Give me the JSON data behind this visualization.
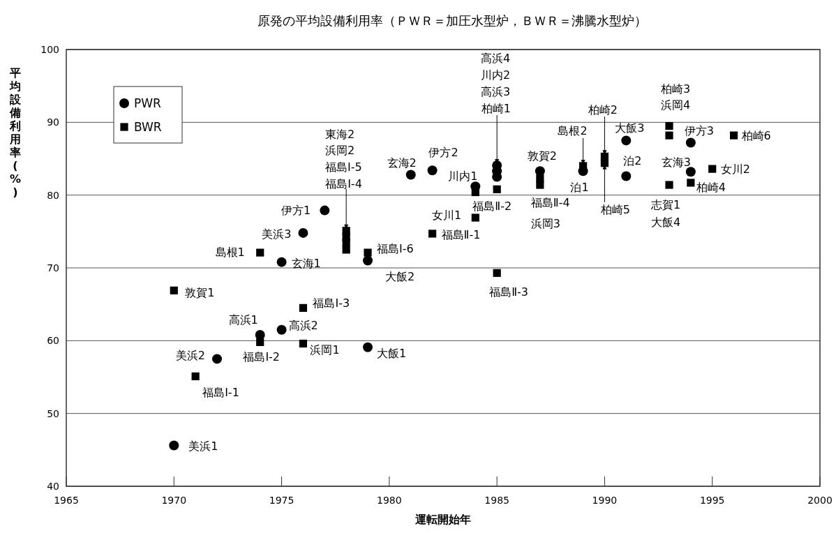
{
  "chart_data": {
    "type": "scatter",
    "title": "原発の平均設備利用率（ＰＷＲ＝加圧水型炉，ＢＷＲ＝沸騰水型炉）",
    "xlabel": "運転開始年",
    "ylabel": "平均設備利用率(%)",
    "xlim": [
      1965,
      2000
    ],
    "xticks": [
      1965,
      1970,
      1975,
      1980,
      1985,
      1990,
      1995,
      2000
    ],
    "ylim": [
      40,
      100
    ],
    "yticks": [
      40,
      50,
      60,
      70,
      80,
      90,
      100
    ],
    "grid": "y",
    "legend": "top left",
    "series": [
      {
        "name": "PWR",
        "color": "#000000",
        "marker": "circle",
        "x": [
          1970,
          1972,
          1974,
          1975,
          1975,
          1976,
          1977,
          1979,
          1979,
          1981,
          1982,
          1984,
          1985,
          1985,
          1985,
          1987,
          1989,
          1991,
          1991,
          1994,
          1994
        ],
        "values": [
          45.6,
          57.5,
          60.8,
          61.5,
          70.8,
          74.8,
          77.9,
          59.1,
          71.0,
          82.8,
          83.4,
          81.2,
          84.1,
          83.3,
          82.5,
          83.3,
          83.3,
          87.5,
          82.6,
          87.2,
          83.2
        ]
      },
      {
        "name": "BWR",
        "color": "#000000",
        "marker": "square",
        "x": [
          1970,
          1971,
          1974,
          1974,
          1976,
          1976,
          1978,
          1978,
          1978,
          1978,
          1979,
          1982,
          1984,
          1984,
          1985,
          1985,
          1987,
          1987,
          1989,
          1990,
          1990,
          1993,
          1993,
          1993,
          1994,
          1995,
          1996
        ],
        "values": [
          66.9,
          55.1,
          72.1,
          59.8,
          64.5,
          59.6,
          75.1,
          74.2,
          73.5,
          72.5,
          72.1,
          74.7,
          76.9,
          80.4,
          80.8,
          69.3,
          82.3,
          81.4,
          84.0,
          85.3,
          84.4,
          89.5,
          88.2,
          81.4,
          81.7,
          83.6,
          88.2
        ]
      }
    ],
    "annotations": [
      {
        "text": "美浜1",
        "x": 1970,
        "y": 45.6
      },
      {
        "text": "美浜2",
        "x": 1972,
        "y": 57.5
      },
      {
        "text": "福島I-1",
        "x": 1971,
        "y": 55.1
      },
      {
        "text": "敦賀1",
        "x": 1970,
        "y": 66.9
      },
      {
        "text": "高浜1",
        "x": 1974,
        "y": 60.8
      },
      {
        "text": "福島I-2",
        "x": 1974,
        "y": 59.8
      },
      {
        "text": "高浜2",
        "x": 1975,
        "y": 61.5
      },
      {
        "text": "浜岡1",
        "x": 1976,
        "y": 59.6
      },
      {
        "text": "福島I-3",
        "x": 1976,
        "y": 64.5
      },
      {
        "text": "島根1",
        "x": 1974,
        "y": 72.1
      },
      {
        "text": "玄海1",
        "x": 1975,
        "y": 70.8
      },
      {
        "text": "美浜3",
        "x": 1976,
        "y": 74.8
      },
      {
        "text": "伊方1",
        "x": 1977,
        "y": 77.9
      },
      "東海2",
      "浜岡2",
      "福島I-5",
      {
        "text": "福島I-4",
        "x": 1978,
        "y": 75.1
      },
      {
        "text": "福島I-6",
        "x": 1979,
        "y": 72.1
      },
      {
        "text": "大飯2",
        "x": 1979,
        "y": 71.0
      },
      {
        "text": "大飯1",
        "x": 1979,
        "y": 59.1
      },
      {
        "text": "玄海2",
        "x": 1981,
        "y": 82.8
      },
      {
        "text": "伊方2",
        "x": 1982,
        "y": 83.4
      },
      {
        "text": "福島Ⅱ-1",
        "x": 1982,
        "y": 74.7
      },
      {
        "text": "川内1",
        "x": 1984,
        "y": 81.2
      },
      {
        "text": "福島Ⅱ-2",
        "x": 1984,
        "y": 80.4
      },
      {
        "text": "女川1",
        "x": 1984,
        "y": 76.9
      },
      "高浜4",
      "川内2",
      "高浜3",
      {
        "text": "柏崎1",
        "x": 1985,
        "y": 84.1
      },
      {
        "text": "福島Ⅱ-3",
        "x": 1985,
        "y": 69.3
      },
      {
        "text": "敦賀2",
        "x": 1987,
        "y": 83.3
      },
      {
        "text": "福島Ⅱ-4",
        "x": 1987,
        "y": 82.3
      },
      {
        "text": "浜岡3",
        "x": 1987,
        "y": 81.4
      },
      {
        "text": "島根2",
        "x": 1989,
        "y": 84.0
      },
      {
        "text": "泊1",
        "x": 1989,
        "y": 83.3
      },
      {
        "text": "柏崎2",
        "x": 1990,
        "y": 85.3
      },
      {
        "text": "柏崎5",
        "x": 1990,
        "y": 84.4
      },
      {
        "text": "大飯3",
        "x": 1991,
        "y": 87.5
      },
      {
        "text": "泊2",
        "x": 1991,
        "y": 82.6
      },
      {
        "text": "柏崎3",
        "x": 1993,
        "y": 89.5
      },
      {
        "text": "浜岡4",
        "x": 1993,
        "y": 88.2
      },
      {
        "text": "志賀1",
        "x": 1993,
        "y": 81.4
      },
      {
        "text": "大飯4",
        "x": 1993,
        "y": 81.4
      },
      {
        "text": "伊方3",
        "x": 1994,
        "y": 87.2
      },
      {
        "text": "玄海3",
        "x": 1994,
        "y": 83.2
      },
      {
        "text": "柏崎4",
        "x": 1994,
        "y": 81.7
      },
      {
        "text": "女川2",
        "x": 1995,
        "y": 83.6
      },
      {
        "text": "柏崎6",
        "x": 1996,
        "y": 88.2
      }
    ]
  }
}
